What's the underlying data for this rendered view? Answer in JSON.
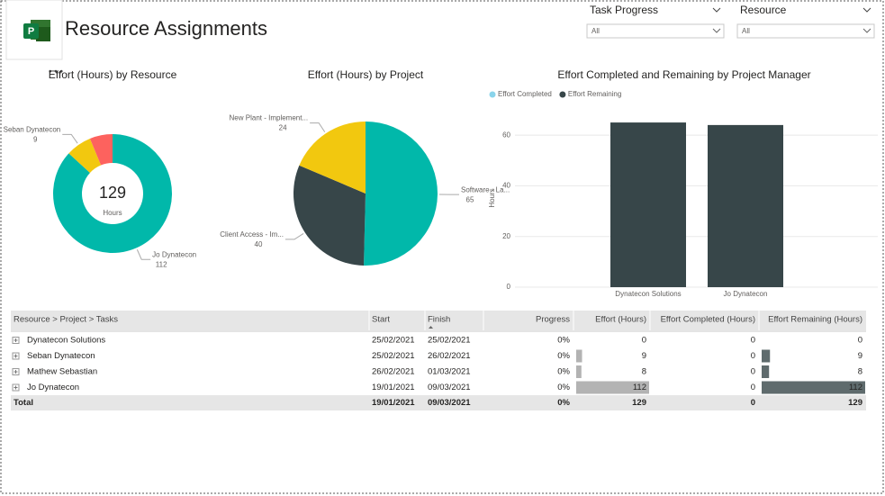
{
  "header": {
    "title": "Resource Assignments"
  },
  "slicers": [
    {
      "label": "Task Progress",
      "value": "All"
    },
    {
      "label": "Resource",
      "value": "All"
    }
  ],
  "chart_data": [
    {
      "type": "donut",
      "title": "Effort (Hours) by Resource",
      "categories": [
        "Jo Dynatecon",
        "Seban Dynatecon",
        null
      ],
      "values": [
        112,
        9,
        8
      ],
      "colors": [
        "#01b8aa",
        "#f2c80f",
        "#fd625e"
      ],
      "center_value": 129,
      "center_label": "Hours"
    },
    {
      "type": "pie",
      "title": "Effort (Hours) by Project",
      "categories": [
        "Software - La...",
        "Client Access - Im...",
        "New Plant - Implement..."
      ],
      "values": [
        65,
        40,
        24
      ],
      "colors": [
        "#01b8aa",
        "#374649",
        "#f2c80f"
      ]
    },
    {
      "type": "bar",
      "title": "Effort Completed and Remaining by Project Manager",
      "categories": [
        "Dynatecon Solutions",
        "Jo Dynatecon"
      ],
      "series": [
        {
          "name": "Effort Completed",
          "color": "#8ad4eb",
          "values": [
            0,
            0
          ]
        },
        {
          "name": "Effort Remaining",
          "color": "#374649",
          "values": [
            65,
            64
          ]
        }
      ],
      "y_label": "Hours",
      "ylim": [
        0,
        70
      ],
      "yticks": [
        0,
        20,
        40,
        60
      ],
      "grid": true
    }
  ],
  "table": {
    "columns": [
      "Resource > Project > Tasks",
      "Start",
      "Finish",
      "Progress",
      "Effort (Hours)",
      "Effort Completed (Hours)",
      "Effort Remaining (Hours)"
    ],
    "rows": [
      [
        "Dynatecon Solutions",
        "25/02/2021",
        "25/02/2021",
        "0%",
        0,
        0,
        0
      ],
      [
        "Seban Dynatecon",
        "25/02/2021",
        "26/02/2021",
        "0%",
        9,
        0,
        9
      ],
      [
        "Mathew Sebastian",
        "26/02/2021",
        "01/03/2021",
        "0%",
        8,
        0,
        8
      ],
      [
        "Jo Dynatecon",
        "19/01/2021",
        "09/03/2021",
        "0%",
        112,
        0,
        112
      ]
    ],
    "total": [
      "Total",
      "19/01/2021",
      "09/03/2021",
      "0%",
      129,
      0,
      129
    ]
  }
}
